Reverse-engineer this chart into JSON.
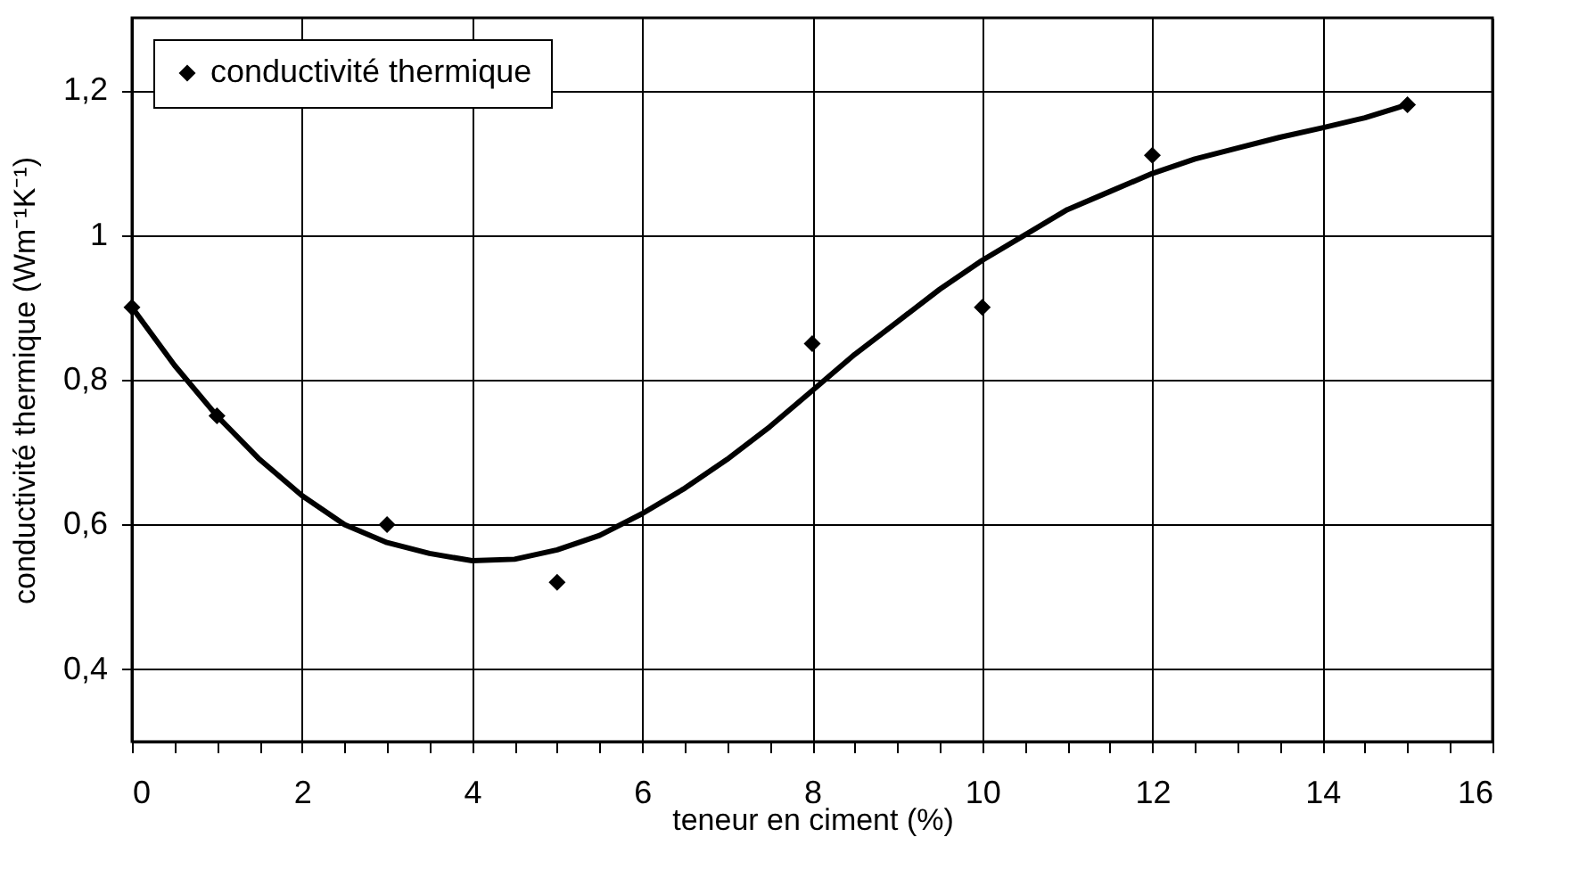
{
  "chart_data": {
    "type": "scatter",
    "xlabel": "teneur en ciment (%)",
    "ylabel": "conductivité thermique (Wm⁻¹K⁻¹)",
    "xlim": [
      0,
      16
    ],
    "ylim": [
      0.3,
      1.3
    ],
    "xticks": [
      0,
      {
        "value": 0.5,
        "label": null
      },
      {
        "value": 1,
        "label": null
      },
      {
        "value": 1.5,
        "label": null
      },
      2,
      {
        "value": 2.5,
        "label": null
      },
      {
        "value": 3,
        "label": null
      },
      {
        "value": 3.5,
        "label": null
      },
      4,
      {
        "value": 4.5,
        "label": null
      },
      {
        "value": 5,
        "label": null
      },
      {
        "value": 5.5,
        "label": null
      },
      6,
      {
        "value": 6.5,
        "label": null
      },
      {
        "value": 7,
        "label": null
      },
      {
        "value": 7.5,
        "label": null
      },
      8,
      {
        "value": 8.5,
        "label": null
      },
      {
        "value": 9,
        "label": null
      },
      {
        "value": 9.5,
        "label": null
      },
      10,
      {
        "value": 10.5,
        "label": null
      },
      {
        "value": 11,
        "label": null
      },
      {
        "value": 11.5,
        "label": null
      },
      12,
      {
        "value": 12.5,
        "label": null
      },
      {
        "value": 13,
        "label": null
      },
      {
        "value": 13.5,
        "label": null
      },
      14,
      {
        "value": 14.5,
        "label": null
      },
      {
        "value": 15,
        "label": null
      },
      {
        "value": 15.5,
        "label": null
      },
      16
    ],
    "yticks": [
      {
        "value": 0.4,
        "label": "0,4"
      },
      {
        "value": 0.6,
        "label": "0,6"
      },
      {
        "value": 0.8,
        "label": "0,8"
      },
      1,
      {
        "value": 1.2,
        "label": "1,2"
      }
    ],
    "grid": true,
    "legend": "top left",
    "marker": "diamond",
    "series": [
      {
        "name": "conductivité thermique",
        "color": "#000000",
        "x": [
          0,
          1,
          3,
          5,
          8,
          10,
          12,
          15
        ],
        "values": [
          0.9,
          0.75,
          0.6,
          0.52,
          0.85,
          0.9,
          1.11,
          1.18
        ]
      },
      {
        "type": "line",
        "color": "#000000",
        "marker": "none",
        "x": [
          0,
          0.5,
          1,
          1.5,
          2,
          2.5,
          3,
          3.5,
          4,
          4.5,
          5,
          5.5,
          6,
          6.5,
          7,
          7.5,
          8,
          8.5,
          9,
          9.5,
          10,
          10.5,
          11,
          11.5,
          12,
          12.5,
          13,
          13.5,
          14,
          14.5,
          15
        ],
        "values": [
          0.9,
          0.82,
          0.75,
          0.69,
          0.64,
          0.6,
          0.575,
          0.56,
          0.55,
          0.552,
          0.565,
          0.585,
          0.615,
          0.65,
          0.69,
          0.735,
          0.785,
          0.835,
          0.88,
          0.925,
          0.965,
          1.0,
          1.035,
          1.06,
          1.085,
          1.105,
          1.12,
          1.135,
          1.148,
          1.162,
          1.18
        ]
      }
    ]
  }
}
